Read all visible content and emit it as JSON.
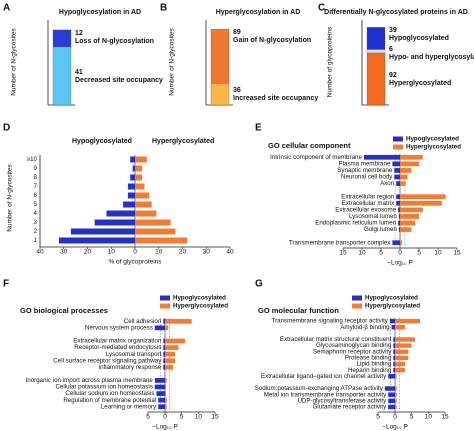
{
  "chart_data": [
    {
      "type": "stacked_bar",
      "label": "A",
      "title": "Hypoglycosylation in AD",
      "y_label": "Number of N-glycosites",
      "ylim": [
        0,
        60
      ],
      "series": [
        {
          "name": "Decreased site occupancy",
          "color": "#5cc6f2",
          "values": [
            41
          ]
        },
        {
          "name": "Loss of N-glycosylation",
          "color": "#2b3bd6",
          "values": [
            12
          ]
        }
      ]
    },
    {
      "type": "stacked_bar",
      "label": "B",
      "title": "Hyperglycosylation in AD",
      "y_label": "Number of N-glycosites",
      "ylim": [
        0,
        140
      ],
      "series": [
        {
          "name": "Increased site occupancy",
          "color": "#fbb545",
          "values": [
            36
          ]
        },
        {
          "name": "Gain of N-glycosylation",
          "color": "#f0782e",
          "values": [
            89
          ]
        }
      ]
    },
    {
      "type": "stacked_bar",
      "label": "C",
      "title": "Differentially N-glycosylated proteins in AD",
      "y_label": "Number of glycoproteins",
      "ylim": [
        0,
        150
      ],
      "series": [
        {
          "name": "Hyperglycosylated",
          "color": "#f26a1f",
          "values": [
            92
          ]
        },
        {
          "name": "Hypo- and hyperglycosylated",
          "color": "#e6e6e6",
          "values": [
            6
          ]
        },
        {
          "name": "Hypoglycosylated",
          "color": "#1f2fd0",
          "values": [
            39
          ]
        }
      ]
    },
    {
      "type": "butterfly",
      "label": "D",
      "y_label": "Number of N-glycosites",
      "x_label": "% of glycoproteins",
      "categories": [
        "≥10",
        "9",
        "8",
        "7",
        "6",
        "5",
        "4",
        "3",
        "2",
        "1"
      ],
      "series": [
        {
          "name": "Hypoglycosylated",
          "color": "#2430c8",
          "values": [
            2,
            1,
            2,
            3,
            3,
            5,
            12,
            17,
            27,
            32
          ]
        },
        {
          "name": "Hyperglycosylated",
          "color": "#f47b30",
          "values": [
            5,
            3,
            3,
            4,
            6,
            7,
            9,
            15,
            17,
            22
          ]
        }
      ],
      "xlim_left": [
        0,
        40
      ],
      "xlim_right": [
        0,
        40
      ],
      "xticks_left": [
        40,
        30,
        20,
        10
      ],
      "xticks_right": [
        0,
        10,
        20,
        30,
        40
      ],
      "legend": false
    },
    {
      "type": "butterfly",
      "label": "E",
      "title": "GO cellular component",
      "x_label": "−Log₁₀ P",
      "categories": [
        "Intrinsic component of membrane",
        "Plasma membrane",
        "Synaptic membrane",
        "Neuronal cell body",
        "Axon",
        null,
        "Extracellular region",
        "Extracellular matrix",
        "Extracellular exosome",
        "Lysosomal lumen",
        "Endoplasmic reticulum lumen",
        "Golgi lumen",
        null,
        "Transmembrane transporter complex"
      ],
      "series": [
        {
          "name": "Hypoglycosylated",
          "color": "#2430c8",
          "values": [
            9.5,
            2,
            1.5,
            1.5,
            1,
            null,
            1,
            1,
            0.5,
            0.3,
            0.5,
            0.3,
            null,
            2
          ]
        },
        {
          "name": "Hyperglycosylated",
          "color": "#f47b30",
          "values": [
            6,
            5,
            3,
            2,
            1.5,
            null,
            12,
            11,
            6,
            5,
            4,
            3,
            null,
            0.5
          ]
        }
      ],
      "xlim_left": [
        0,
        15
      ],
      "xlim_right": [
        0,
        15
      ],
      "xticks_left": [
        15,
        10,
        5
      ],
      "xticks_right": [
        0,
        5,
        10,
        15
      ],
      "threshold": 1.3,
      "legend": true
    },
    {
      "type": "butterfly",
      "label": "F",
      "title": "GO biological processes",
      "x_label": "−Log₁₀ P",
      "categories": [
        "Cell adhesion",
        "Nervous system process",
        null,
        "Extracellular matrix organization",
        "Receptor-mediated endocytosis",
        "Lysosomal transport",
        "Cell surface receptor signaling pathway",
        "Inflammatory response",
        null,
        "Inorganic ion import across plasma membrane",
        "Cellular potassium ion homeostasis",
        "Cellular sodium ion homeostasis",
        "Regulation of membrane potential",
        "Learning or memory"
      ],
      "series": [
        {
          "name": "Hypoglycosylated",
          "color": "#2430c8",
          "values": [
            0.5,
            3,
            null,
            0.5,
            0.5,
            0.5,
            0.5,
            0.5,
            null,
            3,
            3,
            2.5,
            2,
            2
          ]
        },
        {
          "name": "Hyperglycosylated",
          "color": "#f47b30",
          "values": [
            8,
            1,
            null,
            6,
            4,
            3,
            3,
            2.5,
            null,
            0.5,
            0.3,
            0.3,
            0.5,
            0.5
          ]
        }
      ],
      "xlim_left": [
        0,
        5
      ],
      "xlim_right": [
        0,
        15
      ],
      "xticks_left": [
        5
      ],
      "xticks_right": [
        0,
        5,
        10,
        15
      ],
      "threshold": 1.3,
      "legend": true
    },
    {
      "type": "butterfly",
      "label": "G",
      "title": "GO molecular function",
      "x_label": "−Log₁₀ P",
      "categories": [
        "Transmembrane signaling receptor activity",
        "Amyloid-β binding",
        null,
        "Extracellular matrix structural constituent",
        "Glycosaminoglycan binding",
        "Semaphorin receptor activity",
        "Protease binding",
        "Lipid binding",
        "Heparin binding",
        "Extracellular ligand–gated ion channel activity",
        null,
        "Sodium:potassium-exchanging ATPase activity",
        "Metal ion transmembrane transporter activity",
        "UDP-glycosyltransferase activity",
        "Glutamate receptor activity"
      ],
      "series": [
        {
          "name": "Hypoglycosylated",
          "color": "#2430c8",
          "values": [
            1.5,
            1,
            null,
            0.5,
            0.5,
            0.5,
            0.5,
            0.5,
            0.5,
            2,
            null,
            3,
            2,
            2,
            2
          ]
        },
        {
          "name": "Hyperglycosylated",
          "color": "#f47b30",
          "values": [
            7.5,
            3,
            null,
            6,
            5,
            4,
            4,
            3,
            3,
            0.5,
            null,
            0.5,
            0.5,
            0.5,
            0.5
          ]
        }
      ],
      "xlim_left": [
        0,
        5
      ],
      "xlim_right": [
        0,
        15
      ],
      "xticks_left": [
        5
      ],
      "xticks_right": [
        0,
        5,
        10,
        15
      ],
      "threshold": 1.3,
      "legend": true
    }
  ]
}
